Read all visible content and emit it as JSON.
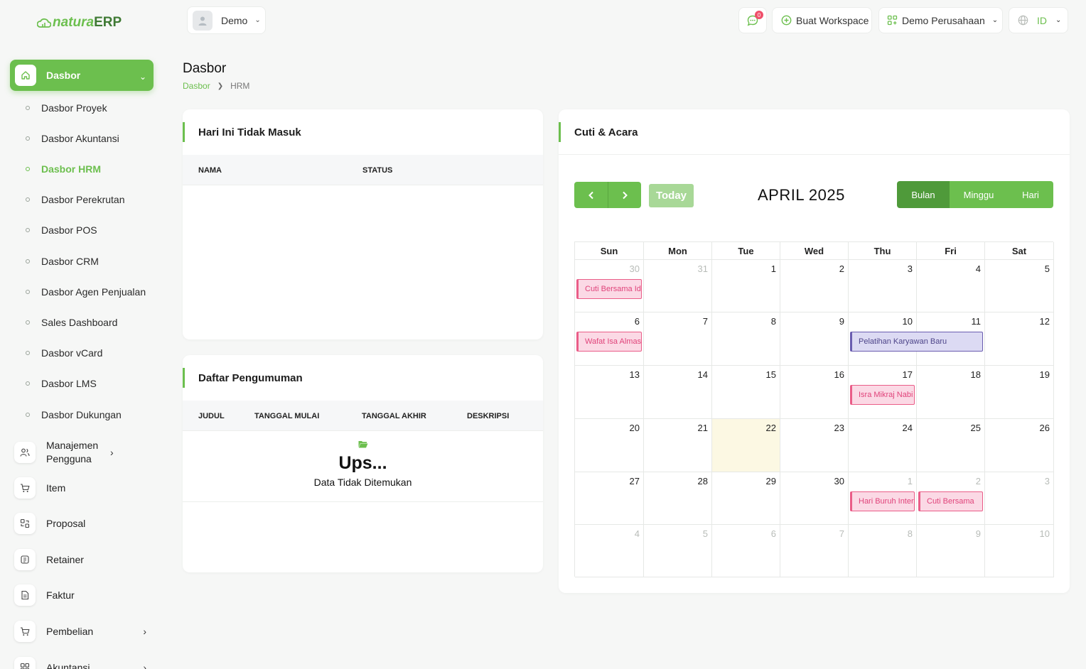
{
  "brand": {
    "part1": "natura",
    "part2": "ERP"
  },
  "sidebar": {
    "active": {
      "label": "Dasbor",
      "icon": "home-icon"
    },
    "subitems": [
      "Dasbor Proyek",
      "Dasbor Akuntansi",
      "Dasbor HRM",
      "Dasbor Perekrutan",
      "Dasbor POS",
      "Dasbor CRM",
      "Dasbor Agen Penjualan",
      "Sales Dashboard",
      "Dasbor vCard",
      "Dasbor LMS",
      "Dasbor Dukungan"
    ],
    "active_sub": "Dasbor HRM",
    "menu": [
      {
        "label": "Manajemen Pengguna",
        "icon": "users-icon",
        "expandable": true
      },
      {
        "label": "Item",
        "icon": "cart-icon",
        "expandable": false
      },
      {
        "label": "Proposal",
        "icon": "proposal-icon",
        "expandable": false
      },
      {
        "label": "Retainer",
        "icon": "retainer-icon",
        "expandable": false
      },
      {
        "label": "Faktur",
        "icon": "invoice-icon",
        "expandable": false
      },
      {
        "label": "Pembelian",
        "icon": "cart-icon",
        "expandable": true
      },
      {
        "label": "Akuntansi",
        "icon": "grid-icon",
        "expandable": true
      }
    ]
  },
  "topbar": {
    "user": "Demo",
    "notifications": "0",
    "create_workspace": "Buat Workspace",
    "company": "Demo Perusahaan",
    "language": "ID"
  },
  "page": {
    "title": "Dasbor",
    "breadcrumb": [
      "Dasbor",
      "HRM"
    ]
  },
  "absent_card": {
    "title": "Hari Ini Tidak Masuk",
    "columns": [
      "NAMA",
      "STATUS"
    ]
  },
  "announce_card": {
    "title": "Daftar Pengumuman",
    "columns": [
      "JUDUL",
      "TANGGAL MULAI",
      "TANGGAL AKHIR",
      "DESKRIPSI"
    ],
    "empty_title": "Ups...",
    "empty_text": "Data Tidak Ditemukan"
  },
  "calendar": {
    "card_title": "Cuti & Acara",
    "title": "APRIL 2025",
    "today_label": "Today",
    "views": [
      "Bulan",
      "Minggu",
      "Hari"
    ],
    "active_view": "Bulan",
    "days": [
      "Sun",
      "Mon",
      "Tue",
      "Wed",
      "Thu",
      "Fri",
      "Sat"
    ],
    "weeks": [
      [
        30,
        31,
        1,
        2,
        3,
        4,
        5
      ],
      [
        6,
        7,
        8,
        9,
        10,
        11,
        12
      ],
      [
        13,
        14,
        15,
        16,
        17,
        18,
        19
      ],
      [
        20,
        21,
        22,
        23,
        24,
        25,
        26
      ],
      [
        27,
        28,
        29,
        30,
        1,
        2,
        3
      ],
      [
        4,
        5,
        6,
        7,
        8,
        9,
        10
      ]
    ],
    "today_date": 22,
    "events": [
      {
        "label": "Cuti Bersama Idul Fitri",
        "week": 0,
        "start_day": 0,
        "span": 1,
        "color": "pink"
      },
      {
        "label": "Wafat Isa Almasih",
        "week": 1,
        "start_day": 0,
        "span": 1,
        "color": "pink"
      },
      {
        "label": "Pelatihan Karyawan Baru",
        "week": 1,
        "start_day": 4,
        "span": 2,
        "color": "purple"
      },
      {
        "label": "Isra Mikraj Nabi",
        "week": 2,
        "start_day": 4,
        "span": 1,
        "color": "pink"
      },
      {
        "label": "Hari Buruh Internasional",
        "week": 4,
        "start_day": 4,
        "span": 1,
        "color": "pink"
      },
      {
        "label": "Cuti Bersama",
        "week": 4,
        "start_day": 5,
        "span": 1,
        "color": "pink"
      }
    ]
  },
  "colors": {
    "accent": "#6cbf4e",
    "accent_dark": "#4f9a3a",
    "event_pink": "#ea5d88",
    "event_purple": "#6a5db0",
    "today_bg": "#fcf8e3"
  }
}
